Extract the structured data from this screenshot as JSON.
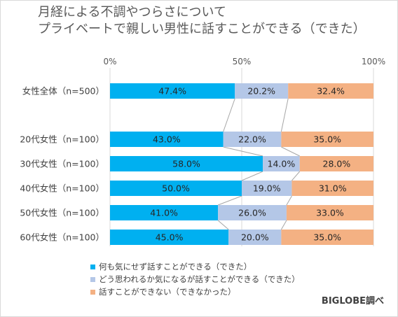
{
  "title_lines": [
    "月経による不調やつらさについて",
    "プライベートで親しい男性に話すことができる（できた）"
  ],
  "source": "BIGLOBE調べ",
  "colors": {
    "s1": "#00b0f0",
    "s2": "#b4c7e7",
    "s3": "#f4b183"
  },
  "legend": [
    {
      "label": "何も気にせず話すことができる（できた）",
      "color": "#00b0f0"
    },
    {
      "label": "どう思われるか気になるが話すことができる（できた）",
      "color": "#b4c7e7"
    },
    {
      "label": "話すことができない（できなかった）",
      "color": "#f4b183"
    }
  ],
  "chart_data": {
    "type": "bar",
    "orientation": "horizontal",
    "stacked": "100%",
    "x_ticks": [
      "0%",
      "50%",
      "100%"
    ],
    "xlim": [
      0,
      100
    ],
    "categories": [
      "女性全体（n=500）",
      "20代女性（n=100）",
      "30代女性（n=100）",
      "40代女性（n=100）",
      "50代女性（n=100）",
      "60代女性（n=100）"
    ],
    "series": [
      {
        "name": "何も気にせず話すことができる（できた）",
        "values": [
          47.4,
          43.0,
          58.0,
          50.0,
          41.0,
          45.0
        ],
        "labels": [
          "47.4%",
          "43.0%",
          "58.0%",
          "50.0%",
          "41.0%",
          "45.0%"
        ]
      },
      {
        "name": "どう思われるか気になるが話すことができる（できた）",
        "values": [
          20.2,
          22.0,
          14.0,
          19.0,
          26.0,
          20.0
        ],
        "labels": [
          "20.2%",
          "22.0%",
          "14.0%",
          "19.0%",
          "26.0%",
          "20.0%"
        ]
      },
      {
        "name": "話すことができない（できなかった）",
        "values": [
          32.4,
          35.0,
          28.0,
          31.0,
          33.0,
          35.0
        ],
        "labels": [
          "32.4%",
          "35.0%",
          "28.0%",
          "31.0%",
          "33.0%",
          "35.0%"
        ]
      }
    ],
    "grid": true,
    "series_lines": true,
    "legend_position": "bottom-left"
  }
}
